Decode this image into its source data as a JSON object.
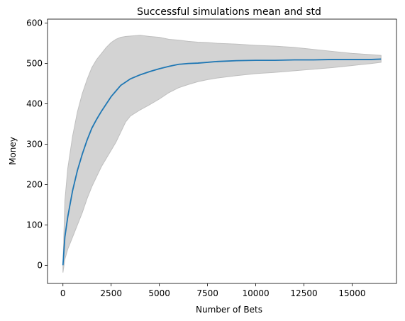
{
  "chart_data": {
    "type": "line",
    "title": "Successful simulations mean and std",
    "xlabel": "Number of Bets",
    "ylabel": "Money",
    "xlim": [
      -800,
      17300
    ],
    "ylim": [
      -45,
      610
    ],
    "xticks": [
      0,
      2500,
      5000,
      7500,
      10000,
      12500,
      15000
    ],
    "xtick_labels": [
      "0",
      "2500",
      "5000",
      "7500",
      "10000",
      "12500",
      "15000"
    ],
    "yticks": [
      0,
      100,
      200,
      300,
      400,
      500,
      600
    ],
    "ytick_labels": [
      "0",
      "100",
      "200",
      "300",
      "400",
      "500",
      "600"
    ],
    "grid": false,
    "legend": "none",
    "colors": {
      "mean": "#1f77b4",
      "band_fill": "#d3d3d3",
      "band_edge": "#bfbfbf"
    },
    "series": [
      {
        "x": [
          0,
          100,
          250,
          500,
          750,
          1000,
          1250,
          1500,
          1750,
          2000,
          2250,
          2500,
          2750,
          3000,
          3250,
          3500,
          4000,
          4500,
          5000,
          5500,
          6000,
          6500,
          7000,
          7500,
          8000,
          9000,
          10000,
          11000,
          12000,
          13000,
          14000,
          15000,
          16000,
          16500
        ],
        "values": [
          0,
          70,
          120,
          185,
          235,
          275,
          310,
          340,
          362,
          382,
          400,
          418,
          432,
          446,
          454,
          462,
          472,
          480,
          487,
          493,
          498,
          500,
          501,
          503,
          505,
          507,
          508,
          508,
          509,
          509,
          510,
          510,
          510,
          511
        ],
        "upper": [
          0,
          160,
          240,
          320,
          380,
          425,
          460,
          490,
          510,
          525,
          540,
          552,
          560,
          565,
          567,
          568,
          570,
          567,
          565,
          560,
          558,
          555,
          553,
          552,
          550,
          548,
          545,
          543,
          540,
          535,
          530,
          525,
          522,
          520
        ],
        "lower": [
          -18,
          15,
          40,
          70,
          100,
          130,
          165,
          195,
          220,
          245,
          265,
          285,
          305,
          330,
          355,
          370,
          385,
          398,
          412,
          428,
          440,
          448,
          455,
          460,
          464,
          470,
          475,
          478,
          482,
          486,
          490,
          495,
          500,
          503
        ]
      }
    ]
  }
}
